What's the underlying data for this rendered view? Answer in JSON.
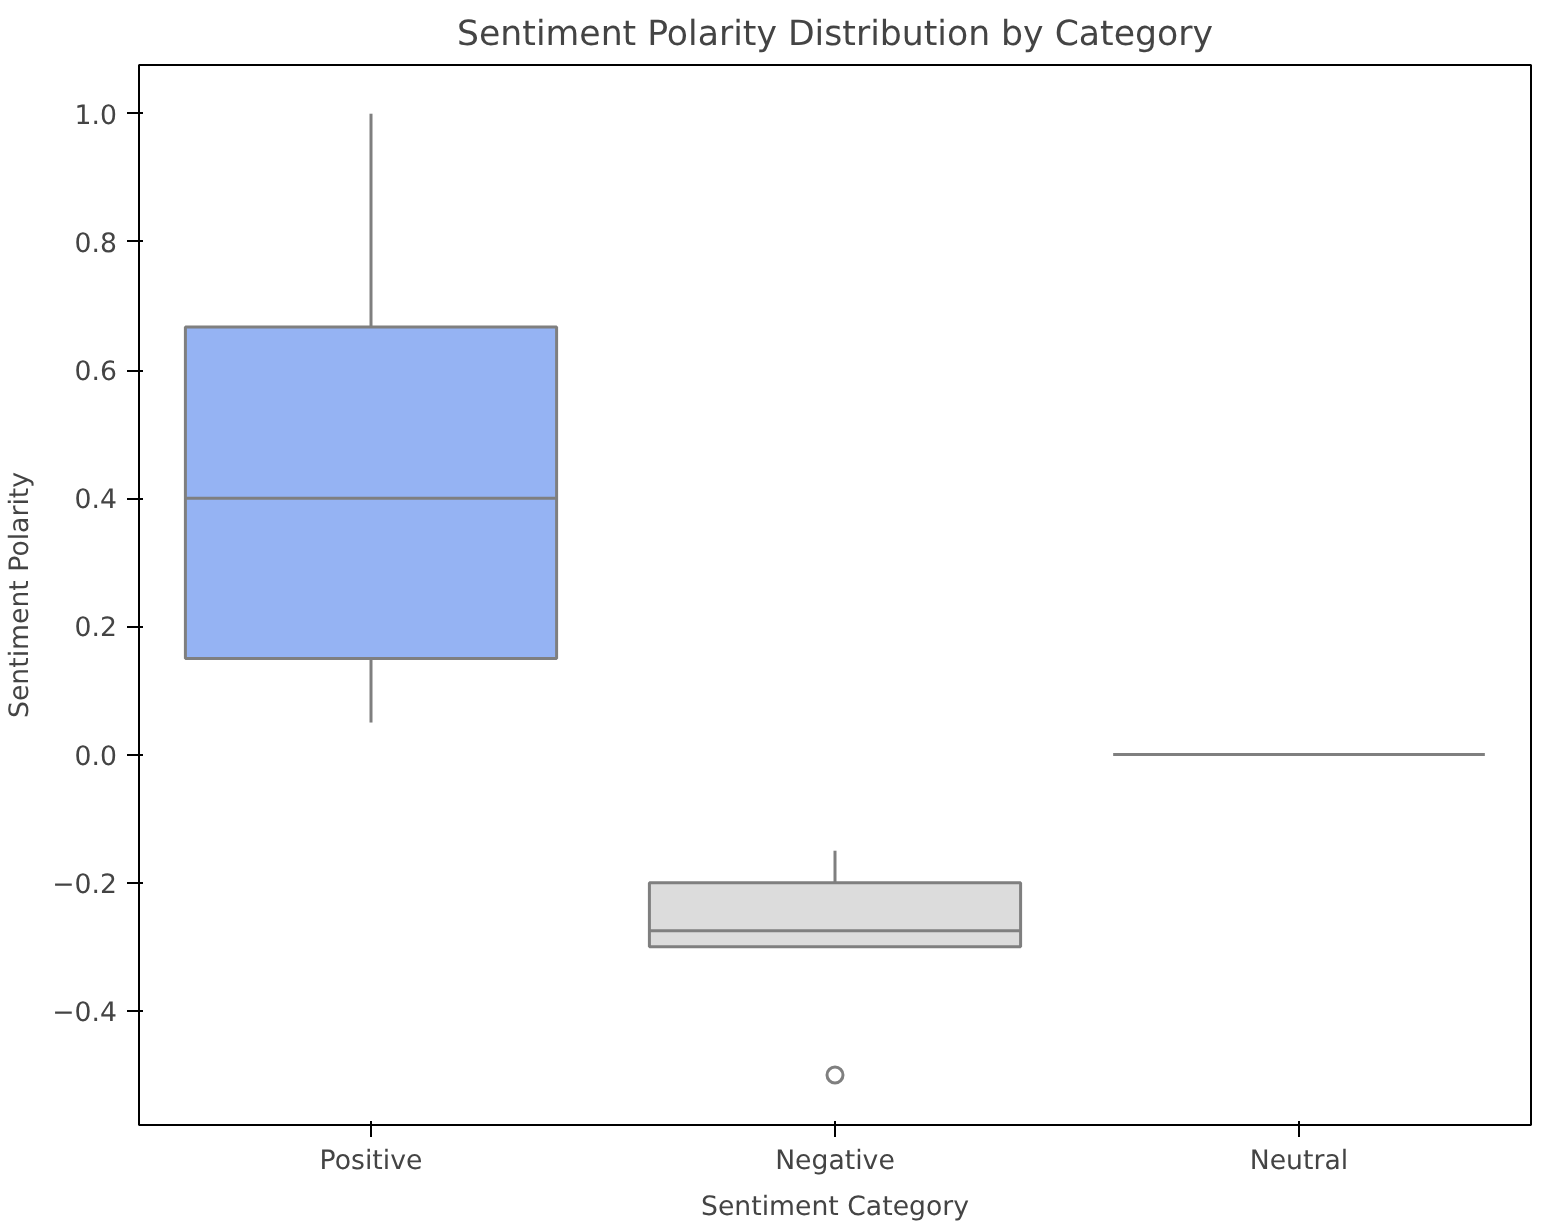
{
  "chart_data": {
    "type": "box",
    "title": "Sentiment Polarity Distribution by Category",
    "xlabel": "Sentiment Category",
    "ylabel": "Sentiment Polarity",
    "categories": [
      "Positive",
      "Negative",
      "Neutral"
    ],
    "colors": [
      "#95b3f3",
      "#dcdcdc",
      "#7f7f7f"
    ],
    "boxes": [
      {
        "low": 0.05,
        "q1": 0.15,
        "median": 0.4,
        "q3": 0.667,
        "high": 1.0
      },
      {
        "low": -0.3,
        "q1": -0.3,
        "median": -0.275,
        "q3": -0.2,
        "high": -0.15,
        "outliers": [
          -0.5
        ]
      },
      {
        "low": 0.0,
        "q1": 0.0,
        "median": 0.0,
        "q3": 0.0,
        "high": 0.0
      }
    ],
    "ylim": [
      -0.578,
      1.076
    ],
    "yticks": [
      {
        "value": -0.4,
        "label": "−0.4"
      },
      {
        "value": -0.2,
        "label": "−0.2"
      },
      {
        "value": 0.0,
        "label": "0.0"
      },
      {
        "value": 0.2,
        "label": "0.2"
      },
      {
        "value": 0.4,
        "label": "0.4"
      },
      {
        "value": 0.6,
        "label": "0.6"
      },
      {
        "value": 0.8,
        "label": "0.8"
      },
      {
        "value": 1.0,
        "label": "1.0"
      }
    ]
  }
}
